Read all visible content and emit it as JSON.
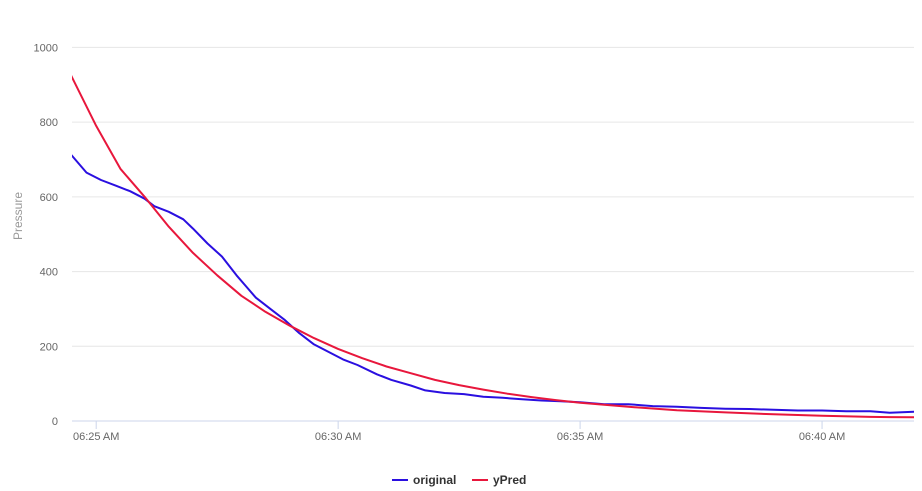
{
  "chart_data": {
    "type": "line",
    "title": "",
    "ylabel": "Pressure",
    "xlabel": "",
    "ylim": [
      0,
      1060
    ],
    "xlim_minutes": [
      -0.5,
      16.9
    ],
    "y_ticks": [
      0,
      200,
      400,
      600,
      800,
      1000
    ],
    "x_ticks": [
      {
        "at": 0,
        "label": "06:25 AM"
      },
      {
        "at": 5,
        "label": "06:30 AM"
      },
      {
        "at": 10,
        "label": "06:35 AM"
      },
      {
        "at": 15,
        "label": "06:40 AM"
      }
    ],
    "legend_position": "bottom-center",
    "grid": true,
    "series": [
      {
        "name": "original",
        "color": "#2a0fe0",
        "x": [
          -1.0,
          -0.8,
          -0.6,
          -0.2,
          0.1,
          0.4,
          0.7,
          1.0,
          1.2,
          1.5,
          1.8,
          2.0,
          2.3,
          2.6,
          2.9,
          3.1,
          3.3,
          3.6,
          3.9,
          4.2,
          4.5,
          4.8,
          5.1,
          5.4,
          5.8,
          6.1,
          6.5,
          6.8,
          7.2,
          7.6,
          8.0,
          8.4,
          8.8,
          9.2,
          9.6,
          10.0,
          10.5,
          11.0,
          11.5,
          12.0,
          12.5,
          13.0,
          13.5,
          14.0,
          14.5,
          15.0,
          15.5,
          16.0,
          16.4,
          16.9
        ],
        "values": [
          735,
          730,
          725,
          665,
          645,
          630,
          615,
          595,
          575,
          560,
          540,
          515,
          475,
          440,
          390,
          360,
          330,
          300,
          270,
          235,
          205,
          185,
          165,
          150,
          125,
          110,
          95,
          82,
          75,
          72,
          65,
          62,
          58,
          55,
          53,
          50,
          45,
          45,
          40,
          38,
          35,
          33,
          32,
          30,
          28,
          28,
          26,
          26,
          22,
          25
        ]
      },
      {
        "name": "yPred",
        "color": "#e8173c",
        "x": [
          -1.0,
          -0.5,
          0.0,
          0.5,
          1.0,
          1.5,
          2.0,
          2.5,
          3.0,
          3.5,
          4.0,
          4.5,
          5.0,
          5.5,
          6.0,
          6.5,
          7.0,
          7.5,
          8.0,
          8.5,
          9.0,
          9.5,
          10.0,
          11.0,
          12.0,
          13.0,
          14.0,
          15.0,
          16.0,
          16.9
        ],
        "values": [
          1055,
          920,
          790,
          675,
          600,
          520,
          450,
          390,
          335,
          292,
          255,
          222,
          193,
          168,
          146,
          128,
          110,
          96,
          84,
          73,
          64,
          56,
          49,
          38,
          29,
          23,
          18,
          14,
          11,
          10
        ]
      }
    ]
  }
}
